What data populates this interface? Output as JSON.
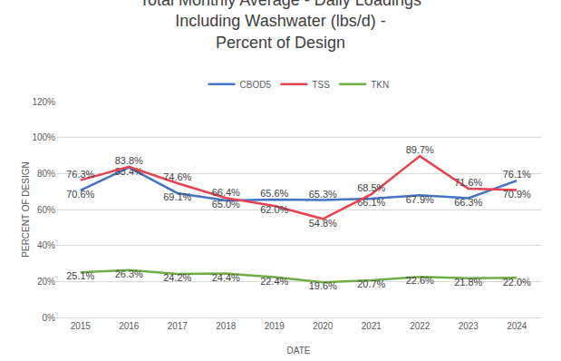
{
  "chart_data": {
    "type": "line",
    "title": [
      "Total Monthly Average - Daily Loadings",
      "Including Washwater (lbs/d) -",
      "Percent of Design"
    ],
    "x_label": "DATE",
    "y_label": "PERCENT OF DESIGN",
    "categories": [
      "2015",
      "2016",
      "2017",
      "2018",
      "2019",
      "2020",
      "2021",
      "2022",
      "2023",
      "2024"
    ],
    "series": [
      {
        "name": "CBOD5",
        "color": "#4472c4",
        "values": [
          70.6,
          83.4,
          69.1,
          65.0,
          65.6,
          65.3,
          66.1,
          67.9,
          66.3,
          76.1
        ],
        "value_labels": [
          "70.6%",
          "83.4%",
          "69.1%",
          "65.0%",
          "65.6%",
          "65.3%",
          "66.1%",
          "67.9%",
          "66.3%",
          "76.1%"
        ]
      },
      {
        "name": "TSS",
        "color": "#e8414f",
        "values": [
          76.3,
          83.8,
          74.6,
          66.4,
          62.0,
          54.8,
          68.5,
          89.7,
          71.6,
          70.9
        ],
        "value_labels": [
          "76.3%",
          "83.8%",
          "74.6%",
          "66.4%",
          "62.0%",
          "54.8%",
          "68.5%",
          "89.7%",
          "71.6%",
          "70.9%"
        ]
      },
      {
        "name": "TKN",
        "color": "#70ad47",
        "values": [
          25.1,
          26.3,
          24.2,
          24.4,
          22.4,
          19.6,
          20.7,
          22.6,
          21.8,
          22.0
        ],
        "value_labels": [
          "25.1%",
          "26.3%",
          "24.2%",
          "24.4%",
          "22.4%",
          "19.6%",
          "20.7%",
          "22.6%",
          "21.8%",
          "22.0%"
        ]
      }
    ],
    "ylim": [
      0,
      120
    ],
    "yticks": [
      {
        "value": 0,
        "label": "0%"
      },
      {
        "value": 20,
        "label": "20%"
      },
      {
        "value": 40,
        "label": "40%"
      },
      {
        "value": 60,
        "label": "60%"
      },
      {
        "value": 80,
        "label": "80%"
      },
      {
        "value": 100,
        "label": "100%"
      },
      {
        "value": 120,
        "label": "120%"
      }
    ],
    "grid": true,
    "legend": "top",
    "data_labels": true
  }
}
